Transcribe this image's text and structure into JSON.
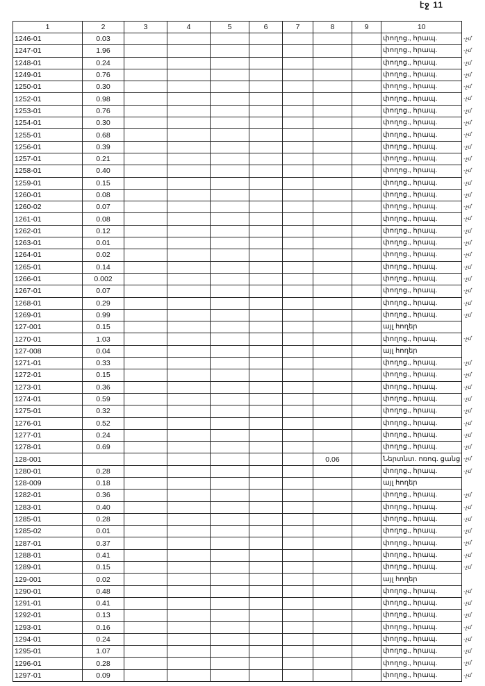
{
  "page_number": "էջ 11",
  "columns": [
    "1",
    "2",
    "3",
    "4",
    "5",
    "6",
    "7",
    "8",
    "9",
    "10"
  ],
  "rows": [
    {
      "c1": "1246-01",
      "c2": "0.03",
      "c8": "",
      "c10": "փողոց., հրապ.",
      "mark": "-չմ"
    },
    {
      "c1": "1247-01",
      "c2": "1.96",
      "c8": "",
      "c10": "փողոց., հրապ.",
      "mark": "-չմ"
    },
    {
      "c1": "1248-01",
      "c2": "0.24",
      "c8": "",
      "c10": "փողոց., հրապ.",
      "mark": "-չմ"
    },
    {
      "c1": "1249-01",
      "c2": "0.76",
      "c8": "",
      "c10": "փողոց., հրապ.",
      "mark": "-չմ"
    },
    {
      "c1": "1250-01",
      "c2": "0.30",
      "c8": "",
      "c10": "փողոց., հրապ.",
      "mark": "-չմ"
    },
    {
      "c1": "1252-01",
      "c2": "0.98",
      "c8": "",
      "c10": "փողոց., հրապ.",
      "mark": "-չմ"
    },
    {
      "c1": "1253-01",
      "c2": "0.76",
      "c8": "",
      "c10": "փողոց., հրապ.",
      "mark": "-չմ"
    },
    {
      "c1": "1254-01",
      "c2": "0.30",
      "c8": "",
      "c10": "փողոց., հրապ.",
      "mark": "-չմ"
    },
    {
      "c1": "1255-01",
      "c2": "0.68",
      "c8": "",
      "c10": "փողոց., հրապ.",
      "mark": "-չմ"
    },
    {
      "c1": "1256-01",
      "c2": "0.39",
      "c8": "",
      "c10": "փողոց., հրապ.",
      "mark": "-չմ"
    },
    {
      "c1": "1257-01",
      "c2": "0.21",
      "c8": "",
      "c10": "փողոց., հրապ.",
      "mark": "-չմ"
    },
    {
      "c1": "1258-01",
      "c2": "0.40",
      "c8": "",
      "c10": "փողոց., հրապ.",
      "mark": "-չմ"
    },
    {
      "c1": "1259-01",
      "c2": "0.15",
      "c8": "",
      "c10": "փողոց., հրապ.",
      "mark": "-չմ"
    },
    {
      "c1": "1260-01",
      "c2": "0.08",
      "c8": "",
      "c10": "փողոց., հրապ.",
      "mark": "-չմ"
    },
    {
      "c1": "1260-02",
      "c2": "0.07",
      "c8": "",
      "c10": "փողոց., հրապ.",
      "mark": "-չմ"
    },
    {
      "c1": "1261-01",
      "c2": "0.08",
      "c8": "",
      "c10": "փողոց., հրապ.",
      "mark": "-չմ"
    },
    {
      "c1": "1262-01",
      "c2": "0.12",
      "c8": "",
      "c10": "փողոց., հրապ.",
      "mark": "-չմ"
    },
    {
      "c1": "1263-01",
      "c2": "0.01",
      "c8": "",
      "c10": "փողոց., հրապ.",
      "mark": "-չմ"
    },
    {
      "c1": "1264-01",
      "c2": "0.02",
      "c8": "",
      "c10": "փողոց., հրապ.",
      "mark": "-չմ"
    },
    {
      "c1": "1265-01",
      "c2": "0.14",
      "c8": "",
      "c10": "փողոց., հրապ.",
      "mark": "-չմ"
    },
    {
      "c1": "1266-01",
      "c2": "0.002",
      "c8": "",
      "c10": "փողոց., հրապ.",
      "mark": "-չմ"
    },
    {
      "c1": "1267-01",
      "c2": "0.07",
      "c8": "",
      "c10": "փողոց., հրապ.",
      "mark": "-չմ"
    },
    {
      "c1": "1268-01",
      "c2": "0.29",
      "c8": "",
      "c10": "փողոց., հրապ.",
      "mark": "-չմ"
    },
    {
      "c1": "1269-01",
      "c2": "0.99",
      "c8": "",
      "c10": "փողոց., հրապ.",
      "mark": "-չմ"
    },
    {
      "c1": "127-001",
      "c2": "0.15",
      "c8": "",
      "c10": "այլ հողեր",
      "mark": ""
    },
    {
      "c1": "1270-01",
      "c2": "1.03",
      "c8": "",
      "c10": "փողոց., հրապ.",
      "mark": "-չմ"
    },
    {
      "c1": "127-008",
      "c2": "0.04",
      "c8": "",
      "c10": "այլ հողեր",
      "mark": ""
    },
    {
      "c1": "1271-01",
      "c2": "0.33",
      "c8": "",
      "c10": "փողոց., հրապ.",
      "mark": "-չմ"
    },
    {
      "c1": "1272-01",
      "c2": "0.15",
      "c8": "",
      "c10": "փողոց., հրապ.",
      "mark": "-չմ"
    },
    {
      "c1": "1273-01",
      "c2": "0.36",
      "c8": "",
      "c10": "փողոց., հրապ.",
      "mark": "-չմ"
    },
    {
      "c1": "1274-01",
      "c2": "0.59",
      "c8": "",
      "c10": "փողոց., հրապ.",
      "mark": "-չմ"
    },
    {
      "c1": "1275-01",
      "c2": "0.32",
      "c8": "",
      "c10": "փողոց., հրապ.",
      "mark": "-չմ"
    },
    {
      "c1": "1276-01",
      "c2": "0.52",
      "c8": "",
      "c10": "փողոց., հրապ.",
      "mark": "-չմ"
    },
    {
      "c1": "1277-01",
      "c2": "0.24",
      "c8": "",
      "c10": "փողոց., հրապ.",
      "mark": "-չմ"
    },
    {
      "c1": "1278-01",
      "c2": "0.69",
      "c8": "",
      "c10": "փողոց., հրապ.",
      "mark": "-չմ"
    },
    {
      "c1": "128-001",
      "c2": "",
      "c8": "0.06",
      "c10": "Ներտնտ. ոռոգ. ցանց",
      "mark": "-չմ"
    },
    {
      "c1": "1280-01",
      "c2": "0.28",
      "c8": "",
      "c10": "փողոց., հրապ.",
      "mark": "-չմ"
    },
    {
      "c1": "128-009",
      "c2": "0.18",
      "c8": "",
      "c10": "այլ հողեր",
      "mark": ""
    },
    {
      "c1": "1282-01",
      "c2": "0.36",
      "c8": "",
      "c10": "փողոց., հրապ.",
      "mark": "-չմ"
    },
    {
      "c1": "1283-01",
      "c2": "0.40",
      "c8": "",
      "c10": "փողոց., հրապ.",
      "mark": "-չմ"
    },
    {
      "c1": "1285-01",
      "c2": "0.28",
      "c8": "",
      "c10": "փողոց., հրապ.",
      "mark": "-չմ"
    },
    {
      "c1": "1285-02",
      "c2": "0.01",
      "c8": "",
      "c10": "փողոց., հրապ.",
      "mark": "-չմ"
    },
    {
      "c1": "1287-01",
      "c2": "0.37",
      "c8": "",
      "c10": "փողոց., հրապ.",
      "mark": "-չմ"
    },
    {
      "c1": "1288-01",
      "c2": "0.41",
      "c8": "",
      "c10": "փողոց., հրապ.",
      "mark": "-չմ"
    },
    {
      "c1": "1289-01",
      "c2": "0.15",
      "c8": "",
      "c10": "փողոց., հրապ.",
      "mark": "-չմ"
    },
    {
      "c1": "129-001",
      "c2": "0.02",
      "c8": "",
      "c10": "այլ հողեր",
      "mark": ""
    },
    {
      "c1": "1290-01",
      "c2": "0.48",
      "c8": "",
      "c10": "փողոց., հրապ.",
      "mark": "-չմ"
    },
    {
      "c1": "1291-01",
      "c2": "0.41",
      "c8": "",
      "c10": "փողոց., հրապ.",
      "mark": "-չմ"
    },
    {
      "c1": "1292-01",
      "c2": "0.13",
      "c8": "",
      "c10": "փողոց., հրապ.",
      "mark": "-չմ"
    },
    {
      "c1": "1293-01",
      "c2": "0.16",
      "c8": "",
      "c10": "փողոց., հրապ.",
      "mark": "-չմ"
    },
    {
      "c1": "1294-01",
      "c2": "0.24",
      "c8": "",
      "c10": "փողոց., հրապ.",
      "mark": "-չմ"
    },
    {
      "c1": "1295-01",
      "c2": "1.07",
      "c8": "",
      "c10": "փողոց., հրապ.",
      "mark": "-չմ"
    },
    {
      "c1": "1296-01",
      "c2": "0.28",
      "c8": "",
      "c10": "փողոց., հրապ.",
      "mark": "-չմ"
    },
    {
      "c1": "1297-01",
      "c2": "0.09",
      "c8": "",
      "c10": "փողոց., հրապ.",
      "mark": "-չմ"
    }
  ]
}
